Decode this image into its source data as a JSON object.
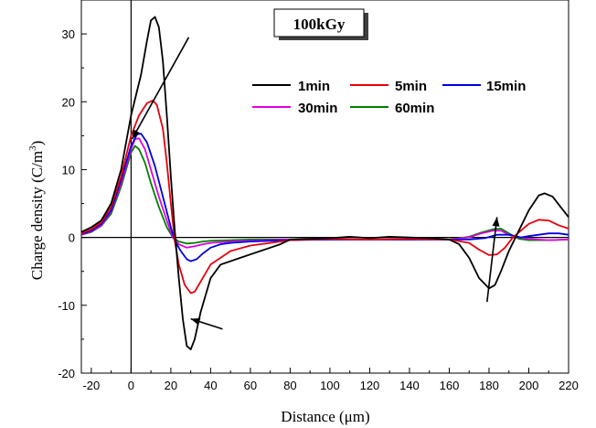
{
  "chart_data": {
    "type": "line",
    "title": "100kGy",
    "xlabel": "Distance (μm)",
    "ylabel": "Charge density (C/m",
    "ylabel_sup": "3",
    "ylabel_end": ")",
    "xlim": [
      -25,
      220
    ],
    "ylim": [
      -20,
      35
    ],
    "x_ticks": [
      -20,
      0,
      20,
      40,
      60,
      80,
      100,
      120,
      140,
      160,
      180,
      200,
      220
    ],
    "y_ticks": [
      -20,
      -10,
      0,
      10,
      20,
      30
    ],
    "x_tick_labels": [
      "-20",
      "0",
      "20",
      "40",
      "60",
      "80",
      "100",
      "120",
      "140",
      "160",
      "180",
      "200",
      "220"
    ],
    "y_tick_labels": [
      "-20",
      "-10",
      "0",
      "10",
      "20",
      "30"
    ],
    "legend_position": "top-right",
    "grid": false,
    "series": [
      {
        "name": "1min",
        "color": "#000000",
        "points": [
          [
            -25,
            0.8
          ],
          [
            -20,
            1.5
          ],
          [
            -15,
            2.5
          ],
          [
            -10,
            5
          ],
          [
            -5,
            10
          ],
          [
            0,
            18
          ],
          [
            5,
            24
          ],
          [
            8,
            29
          ],
          [
            10,
            32
          ],
          [
            12,
            32.5
          ],
          [
            14,
            31
          ],
          [
            16,
            26
          ],
          [
            18,
            18
          ],
          [
            20,
            9
          ],
          [
            22,
            1
          ],
          [
            24,
            -6
          ],
          [
            26,
            -12
          ],
          [
            28,
            -16
          ],
          [
            30,
            -16.5
          ],
          [
            32,
            -15
          ],
          [
            35,
            -11
          ],
          [
            40,
            -6
          ],
          [
            45,
            -4
          ],
          [
            50,
            -3.5
          ],
          [
            55,
            -3
          ],
          [
            60,
            -2.5
          ],
          [
            65,
            -2
          ],
          [
            70,
            -1.5
          ],
          [
            75,
            -1
          ],
          [
            80,
            -0.3
          ],
          [
            90,
            -0.2
          ],
          [
            100,
            -0.1
          ],
          [
            110,
            0.1
          ],
          [
            120,
            -0.1
          ],
          [
            130,
            0.1
          ],
          [
            140,
            0
          ],
          [
            150,
            -0.1
          ],
          [
            160,
            -0.3
          ],
          [
            165,
            -1
          ],
          [
            170,
            -3
          ],
          [
            175,
            -6
          ],
          [
            180,
            -7.5
          ],
          [
            183,
            -7
          ],
          [
            186,
            -5
          ],
          [
            190,
            -2
          ],
          [
            195,
            1
          ],
          [
            200,
            4
          ],
          [
            205,
            6.2
          ],
          [
            208,
            6.5
          ],
          [
            212,
            6
          ],
          [
            216,
            4.5
          ],
          [
            220,
            3
          ]
        ]
      },
      {
        "name": "5min",
        "color": "#e8000d",
        "points": [
          [
            -25,
            0.6
          ],
          [
            -20,
            1.2
          ],
          [
            -15,
            2.2
          ],
          [
            -10,
            4.5
          ],
          [
            -5,
            9
          ],
          [
            0,
            15
          ],
          [
            4,
            18
          ],
          [
            8,
            19.8
          ],
          [
            11,
            20.2
          ],
          [
            13,
            19.5
          ],
          [
            16,
            16
          ],
          [
            18,
            11
          ],
          [
            20,
            5
          ],
          [
            22,
            -0.5
          ],
          [
            24,
            -4
          ],
          [
            27,
            -7
          ],
          [
            30,
            -8.2
          ],
          [
            32,
            -8
          ],
          [
            35,
            -6.5
          ],
          [
            40,
            -4
          ],
          [
            45,
            -3
          ],
          [
            50,
            -2
          ],
          [
            60,
            -1.2
          ],
          [
            70,
            -0.8
          ],
          [
            80,
            -0.4
          ],
          [
            90,
            -0.3
          ],
          [
            100,
            -0.2
          ],
          [
            120,
            -0.3
          ],
          [
            140,
            -0.2
          ],
          [
            160,
            -0.3
          ],
          [
            170,
            -0.8
          ],
          [
            175,
            -1.8
          ],
          [
            180,
            -2.6
          ],
          [
            184,
            -2.5
          ],
          [
            188,
            -1.5
          ],
          [
            192,
            0
          ],
          [
            196,
            1
          ],
          [
            200,
            2
          ],
          [
            205,
            2.6
          ],
          [
            210,
            2.5
          ],
          [
            215,
            1.8
          ],
          [
            220,
            1.3
          ]
        ]
      },
      {
        "name": "15min",
        "color": "#0000e0",
        "points": [
          [
            -25,
            0.5
          ],
          [
            -20,
            1
          ],
          [
            -15,
            2
          ],
          [
            -10,
            4
          ],
          [
            -5,
            8.5
          ],
          [
            0,
            13.5
          ],
          [
            3,
            15.2
          ],
          [
            5,
            15.3
          ],
          [
            8,
            14
          ],
          [
            12,
            10.5
          ],
          [
            16,
            6
          ],
          [
            20,
            1.5
          ],
          [
            22,
            -0.5
          ],
          [
            25,
            -2
          ],
          [
            28,
            -3.2
          ],
          [
            30,
            -3.5
          ],
          [
            33,
            -3.2
          ],
          [
            36,
            -2.4
          ],
          [
            40,
            -1.5
          ],
          [
            45,
            -1
          ],
          [
            50,
            -0.8
          ],
          [
            60,
            -0.6
          ],
          [
            70,
            -0.5
          ],
          [
            80,
            -0.4
          ],
          [
            100,
            -0.3
          ],
          [
            120,
            -0.3
          ],
          [
            140,
            -0.3
          ],
          [
            160,
            -0.3
          ],
          [
            170,
            -0.3
          ],
          [
            178,
            -0.1
          ],
          [
            184,
            0.4
          ],
          [
            190,
            0.4
          ],
          [
            196,
            0
          ],
          [
            200,
            0.2
          ],
          [
            210,
            0.6
          ],
          [
            215,
            0.6
          ],
          [
            220,
            0.4
          ]
        ]
      },
      {
        "name": "30min",
        "color": "#e000e0",
        "points": [
          [
            -25,
            0.4
          ],
          [
            -20,
            0.9
          ],
          [
            -15,
            1.8
          ],
          [
            -10,
            3.8
          ],
          [
            -5,
            8
          ],
          [
            0,
            13
          ],
          [
            2,
            14.5
          ],
          [
            4,
            14.6
          ],
          [
            7,
            13
          ],
          [
            10,
            10
          ],
          [
            14,
            6
          ],
          [
            18,
            2.5
          ],
          [
            21,
            0
          ],
          [
            24,
            -1
          ],
          [
            28,
            -1.5
          ],
          [
            32,
            -1.3
          ],
          [
            36,
            -1
          ],
          [
            40,
            -0.8
          ],
          [
            50,
            -0.6
          ],
          [
            60,
            -0.5
          ],
          [
            80,
            -0.3
          ],
          [
            100,
            -0.3
          ],
          [
            120,
            -0.3
          ],
          [
            140,
            -0.3
          ],
          [
            160,
            -0.3
          ],
          [
            170,
            0
          ],
          [
            176,
            0.6
          ],
          [
            182,
            1
          ],
          [
            186,
            1
          ],
          [
            190,
            0.4
          ],
          [
            195,
            0
          ],
          [
            200,
            -0.2
          ],
          [
            210,
            -0.4
          ],
          [
            220,
            -0.3
          ]
        ]
      },
      {
        "name": "60min",
        "color": "#008000",
        "points": [
          [
            -25,
            0.4
          ],
          [
            -20,
            0.8
          ],
          [
            -15,
            1.7
          ],
          [
            -10,
            3.5
          ],
          [
            -5,
            7.5
          ],
          [
            0,
            12.5
          ],
          [
            2,
            13.5
          ],
          [
            4,
            13
          ],
          [
            7,
            11
          ],
          [
            10,
            8
          ],
          [
            14,
            4.5
          ],
          [
            18,
            1.5
          ],
          [
            21,
            0
          ],
          [
            24,
            -0.6
          ],
          [
            28,
            -0.9
          ],
          [
            32,
            -0.8
          ],
          [
            36,
            -0.6
          ],
          [
            40,
            -0.5
          ],
          [
            50,
            -0.4
          ],
          [
            60,
            -0.3
          ],
          [
            80,
            -0.3
          ],
          [
            100,
            -0.3
          ],
          [
            120,
            -0.3
          ],
          [
            140,
            -0.3
          ],
          [
            160,
            -0.3
          ],
          [
            170,
            0.1
          ],
          [
            176,
            0.7
          ],
          [
            182,
            1.2
          ],
          [
            186,
            1.3
          ],
          [
            190,
            0.6
          ],
          [
            195,
            -0.2
          ],
          [
            200,
            -0.4
          ],
          [
            210,
            -0.4
          ],
          [
            220,
            -0.3
          ]
        ]
      }
    ],
    "annotations": [
      {
        "type": "arrow",
        "from": [
          29,
          29.5
        ],
        "to": [
          0.5,
          14.5
        ]
      },
      {
        "type": "arrow",
        "from": [
          46,
          -13.5
        ],
        "to": [
          30,
          -12
        ]
      },
      {
        "type": "arrow",
        "from": [
          179,
          -9.5
        ],
        "to": [
          184,
          3
        ]
      }
    ]
  }
}
